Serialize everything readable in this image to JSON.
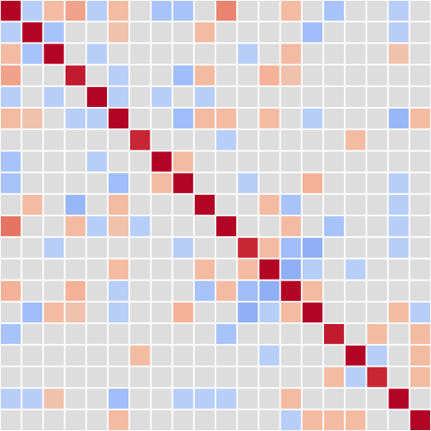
{
  "chart_data": {
    "type": "heatmap",
    "title": "",
    "xlabel": "",
    "ylabel": "",
    "rows": 20,
    "cols": 20,
    "value_range": [
      -1,
      1
    ],
    "colormap": "coolwarm",
    "grid": true,
    "grid_color": "#ffffff",
    "background_cell_color": "#dddddd",
    "values": [
      [
        1.0,
        -0.3,
        0.3,
        0.4,
        -0.3,
        0.3,
        0.0,
        -0.4,
        -0.4,
        0.0,
        0.5,
        0.0,
        0.0,
        0.3,
        0.0,
        -0.4,
        0.0,
        0.0,
        -0.3,
        0.0
      ],
      [
        -0.3,
        1.0,
        -0.4,
        0.0,
        0.0,
        0.25,
        0.0,
        0.0,
        0.0,
        0.3,
        0.0,
        0.0,
        0.0,
        0.0,
        -0.45,
        0.0,
        0.0,
        0.0,
        -0.3,
        0.0
      ],
      [
        0.3,
        -0.4,
        1.0,
        0.0,
        -0.3,
        0.0,
        0.0,
        0.0,
        0.0,
        0.0,
        0.0,
        -0.3,
        0.0,
        0.3,
        0.0,
        0.0,
        0.0,
        0.0,
        0.25,
        0.0
      ],
      [
        0.4,
        0.0,
        0.0,
        0.9,
        0.0,
        -0.3,
        0.0,
        0.0,
        -0.45,
        0.3,
        0.0,
        0.0,
        0.35,
        0.25,
        0.0,
        0.0,
        0.0,
        0.0,
        0.0,
        0.0
      ],
      [
        -0.3,
        0.0,
        -0.3,
        0.0,
        1.0,
        -0.3,
        0.0,
        -0.3,
        0.0,
        -0.3,
        0.0,
        0.0,
        0.0,
        0.0,
        0.0,
        0.0,
        0.0,
        0.0,
        0.0,
        0.0
      ],
      [
        0.3,
        0.25,
        0.0,
        -0.3,
        -0.3,
        1.0,
        0.0,
        0.0,
        -0.45,
        0.3,
        0.3,
        0.0,
        0.3,
        0.0,
        -0.3,
        0.0,
        0.0,
        0.0,
        -0.5,
        0.3
      ],
      [
        0.0,
        0.0,
        0.0,
        0.0,
        0.0,
        0.0,
        0.85,
        0.0,
        0.0,
        0.0,
        -0.3,
        0.0,
        0.0,
        0.0,
        0.0,
        0.0,
        0.3,
        0.0,
        0.0,
        0.0
      ],
      [
        -0.4,
        0.0,
        0.0,
        0.0,
        -0.3,
        0.0,
        0.0,
        1.0,
        0.3,
        0.0,
        0.0,
        0.0,
        0.0,
        0.0,
        0.0,
        0.0,
        0.0,
        0.0,
        0.0,
        0.0
      ],
      [
        -0.4,
        0.0,
        0.0,
        0.0,
        0.0,
        -0.45,
        0.0,
        0.3,
        1.0,
        0.0,
        0.0,
        -0.3,
        0.0,
        0.0,
        0.35,
        0.0,
        0.0,
        0.0,
        -0.3,
        0.0
      ],
      [
        0.0,
        0.3,
        0.0,
        -0.5,
        0.0,
        0.3,
        0.0,
        0.0,
        0.0,
        1.0,
        0.0,
        0.0,
        0.3,
        -0.4,
        0.0,
        0.0,
        0.0,
        0.0,
        -0.3,
        0.0
      ],
      [
        0.55,
        0.0,
        0.0,
        0.3,
        -0.3,
        0.25,
        -0.3,
        0.0,
        0.0,
        0.0,
        1.0,
        0.0,
        0.0,
        0.3,
        0.0,
        -0.4,
        0.0,
        0.0,
        -0.3,
        0.0
      ],
      [
        0.0,
        0.0,
        -0.3,
        0.0,
        0.0,
        0.0,
        0.0,
        0.0,
        -0.3,
        0.0,
        0.0,
        0.85,
        0.3,
        -0.45,
        -0.55,
        0.0,
        0.0,
        0.0,
        -0.3,
        0.0
      ],
      [
        0.0,
        0.0,
        0.0,
        0.0,
        0.0,
        0.3,
        0.0,
        0.0,
        0.0,
        0.3,
        0.0,
        0.3,
        1.0,
        -0.55,
        -0.3,
        0.0,
        -0.3,
        0.0,
        0.0,
        0.0
      ],
      [
        0.35,
        0.0,
        0.0,
        0.35,
        0.0,
        -0.3,
        0.0,
        0.0,
        0.0,
        -0.4,
        0.3,
        -0.45,
        -0.55,
        1.0,
        0.3,
        0.0,
        0.0,
        0.0,
        0.0,
        0.0
      ],
      [
        0.0,
        -0.45,
        0.3,
        0.25,
        0.0,
        -0.3,
        0.0,
        0.0,
        0.35,
        0.0,
        0.0,
        -0.55,
        -0.3,
        0.3,
        1.0,
        0.0,
        0.0,
        0.0,
        0.3,
        -0.3
      ],
      [
        -0.4,
        0.0,
        0.0,
        0.0,
        0.0,
        0.0,
        0.0,
        0.0,
        0.0,
        0.0,
        -0.4,
        0.0,
        0.0,
        0.0,
        0.0,
        0.9,
        0.0,
        0.3,
        0.0,
        0.3
      ],
      [
        0.0,
        0.0,
        0.0,
        0.0,
        0.0,
        0.0,
        0.3,
        0.0,
        0.0,
        0.0,
        0.0,
        0.0,
        -0.3,
        0.0,
        0.0,
        0.0,
        1.0,
        -0.3,
        0.0,
        0.3
      ],
      [
        0.0,
        0.0,
        0.0,
        0.0,
        0.0,
        0.0,
        0.0,
        0.0,
        0.0,
        0.0,
        0.0,
        0.0,
        0.0,
        0.0,
        0.0,
        0.3,
        -0.3,
        0.85,
        0.0,
        0.3
      ],
      [
        -0.3,
        -0.3,
        0.25,
        0.0,
        0.0,
        -0.45,
        0.0,
        0.0,
        -0.3,
        -0.3,
        -0.3,
        0.0,
        0.0,
        0.3,
        0.0,
        0.0,
        0.0,
        0.0,
        1.0,
        0.0
      ],
      [
        0.0,
        0.0,
        0.0,
        0.0,
        0.0,
        0.3,
        0.0,
        0.0,
        0.0,
        0.0,
        0.0,
        0.0,
        0.0,
        -0.3,
        0.3,
        0.3,
        0.3,
        0.0,
        0.0,
        1.0
      ]
    ]
  }
}
